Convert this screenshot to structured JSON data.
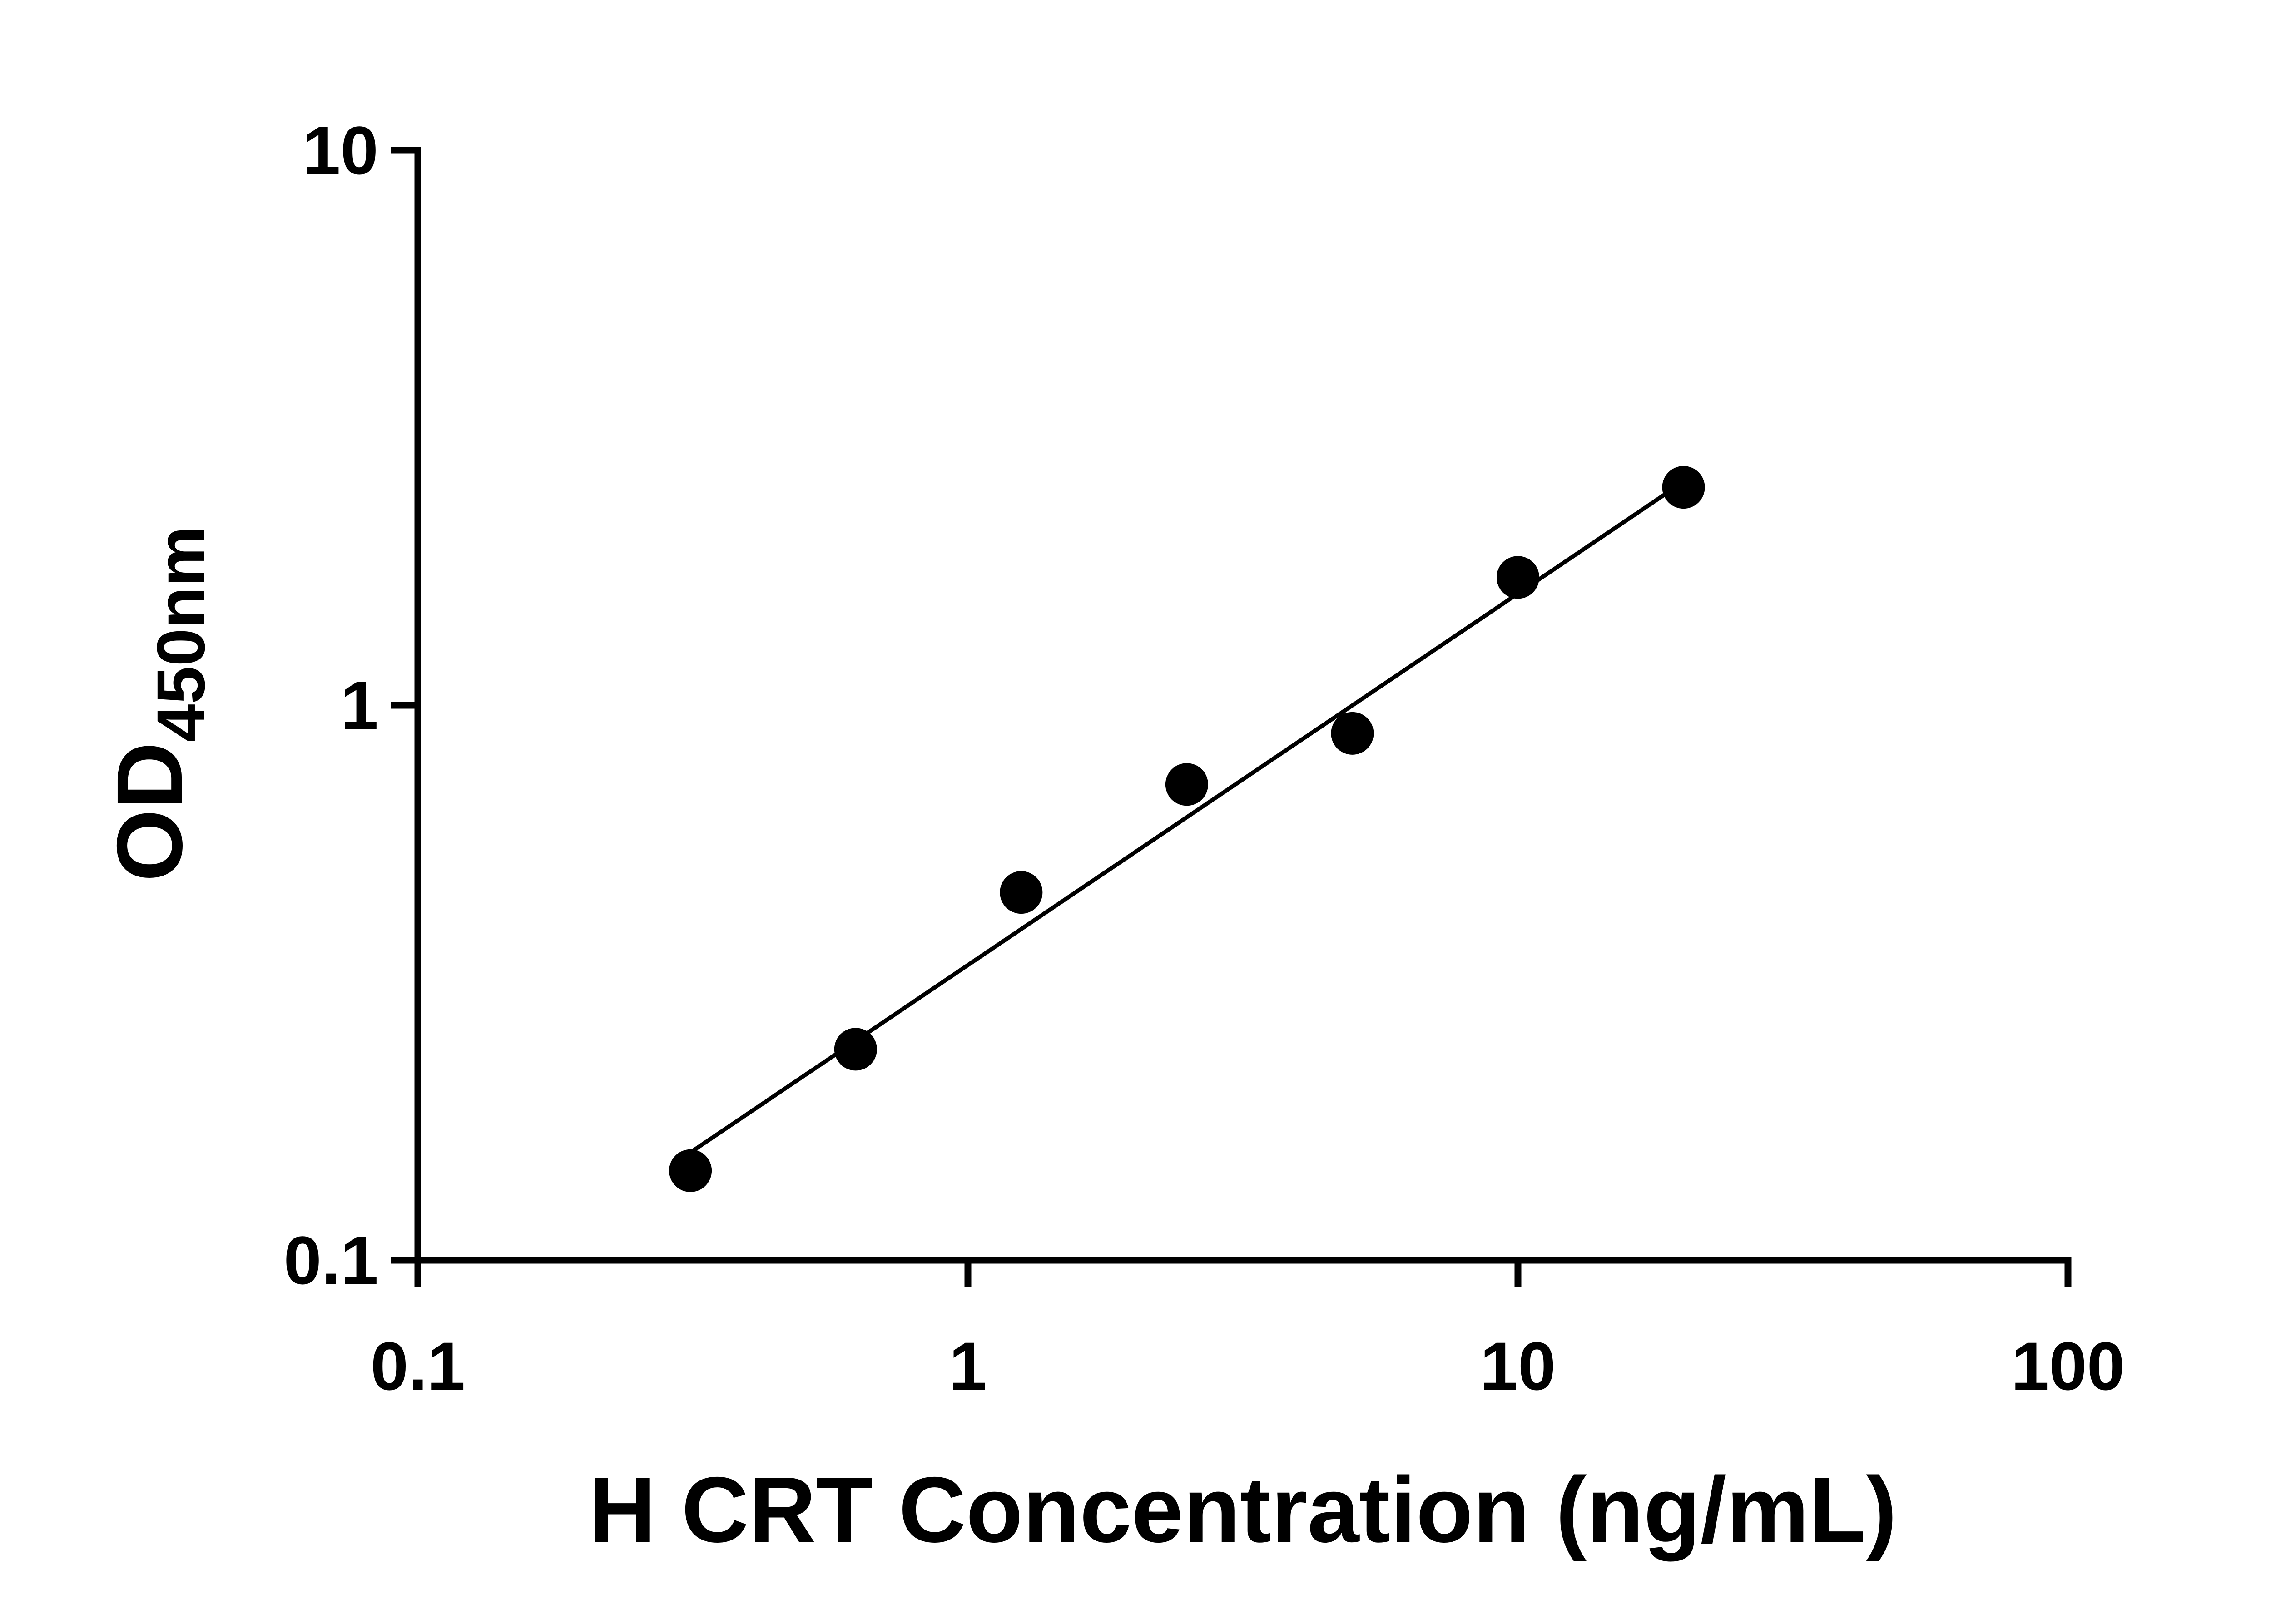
{
  "colors": {
    "foreground": "#000000",
    "background": "#ffffff"
  },
  "chart_data": {
    "type": "scatter",
    "title": "",
    "xlabel": "H CRT Concentration (ng/mL)",
    "ylabel_main": "OD",
    "ylabel_sub": "450nm",
    "x_scale": "log10",
    "y_scale": "log10",
    "xlim": [
      0.1,
      100
    ],
    "ylim": [
      0.1,
      10
    ],
    "x_ticks": [
      0.1,
      1,
      10,
      100
    ],
    "x_tick_labels": [
      "0.1",
      "1",
      "10",
      "100"
    ],
    "y_ticks": [
      0.1,
      1,
      10
    ],
    "y_tick_labels": [
      "0.1",
      "1",
      "10"
    ],
    "grid": false,
    "legend": "none",
    "series": [
      {
        "name": "standard-curve-points",
        "marker": "filled-circle",
        "color": "#000000",
        "x": [
          0.313,
          0.625,
          1.25,
          2.5,
          5,
          10,
          20
        ],
        "y": [
          0.145,
          0.24,
          0.46,
          0.72,
          0.89,
          1.7,
          2.47
        ]
      }
    ],
    "trend_line": {
      "x1": 0.3,
      "y1": 0.152,
      "x2": 20.5,
      "y2": 2.57
    }
  }
}
